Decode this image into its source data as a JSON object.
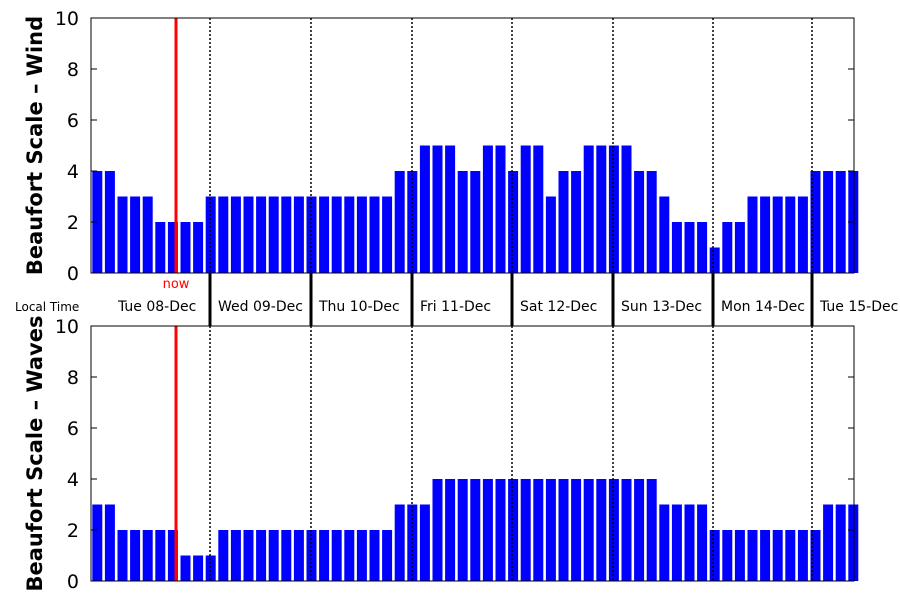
{
  "colors": {
    "bar": "#0000ff",
    "now_line": "#ff0000",
    "day_line": "#000000"
  },
  "labels": {
    "local_time": "Local Time",
    "now": "now"
  },
  "days": [
    "Tue 08-Dec",
    "Wed 09-Dec",
    "Thu 10-Dec",
    "Fri 11-Dec",
    "Sat 12-Dec",
    "Sun 13-Dec",
    "Mon 14-Dec",
    "Tue 15-Dec"
  ],
  "chart_data": [
    {
      "type": "bar",
      "ylabel": "Beaufort Scale – Wind",
      "ylim": [
        0,
        10
      ],
      "yticks": [
        0,
        2,
        4,
        6,
        8,
        10
      ],
      "grid": false,
      "values": [
        4,
        4,
        3,
        3,
        3,
        2,
        2,
        2,
        2,
        3,
        3,
        3,
        3,
        3,
        3,
        3,
        3,
        3,
        3,
        3,
        3,
        3,
        3,
        3,
        4,
        4,
        5,
        5,
        5,
        4,
        4,
        5,
        5,
        4,
        5,
        5,
        3,
        4,
        4,
        5,
        5,
        5,
        5,
        4,
        4,
        3,
        2,
        2,
        2,
        1,
        2,
        2,
        3,
        3,
        3,
        3,
        3,
        4,
        4,
        4,
        4
      ]
    },
    {
      "type": "bar",
      "ylabel": "Beaufort Scale – Waves",
      "ylim": [
        0,
        10
      ],
      "yticks": [
        0,
        2,
        4,
        6,
        8,
        10
      ],
      "grid": false,
      "values": [
        3,
        3,
        2,
        2,
        2,
        2,
        2,
        1,
        1,
        1,
        2,
        2,
        2,
        2,
        2,
        2,
        2,
        2,
        2,
        2,
        2,
        2,
        2,
        2,
        3,
        3,
        3,
        4,
        4,
        4,
        4,
        4,
        4,
        4,
        4,
        4,
        4,
        4,
        4,
        4,
        4,
        4,
        4,
        4,
        4,
        3,
        3,
        3,
        3,
        2,
        2,
        2,
        2,
        2,
        2,
        2,
        2,
        2,
        3,
        3,
        3
      ]
    }
  ]
}
